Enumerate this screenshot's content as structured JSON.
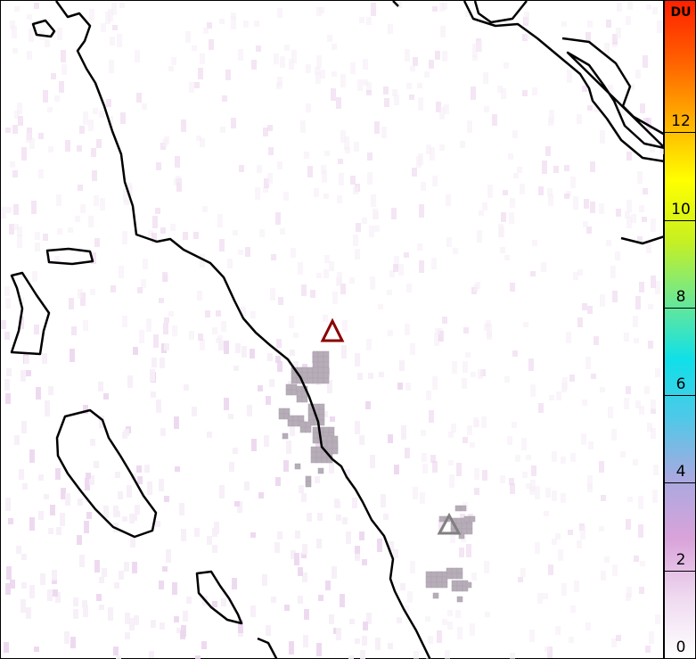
{
  "colorbar": {
    "unit": "DU",
    "min": 0,
    "max": 15,
    "ticks": [
      "0",
      "2",
      "4",
      "6",
      "8",
      "10",
      "12"
    ],
    "colors": [
      "#ffffff",
      "#efdaf0",
      "#d9a3da",
      "#a9a9e0",
      "#50c8e8",
      "#10e0e8",
      "#6ee890",
      "#c8f020",
      "#ffff00",
      "#ffb000",
      "#ff6000",
      "#ff2000"
    ]
  },
  "markers": [
    {
      "name": "volcano-red",
      "color": "#8b0000"
    },
    {
      "name": "volcano-grey",
      "color": "#808080"
    }
  ],
  "plume_color": "#b7adb9",
  "coast_color": "#000000"
}
